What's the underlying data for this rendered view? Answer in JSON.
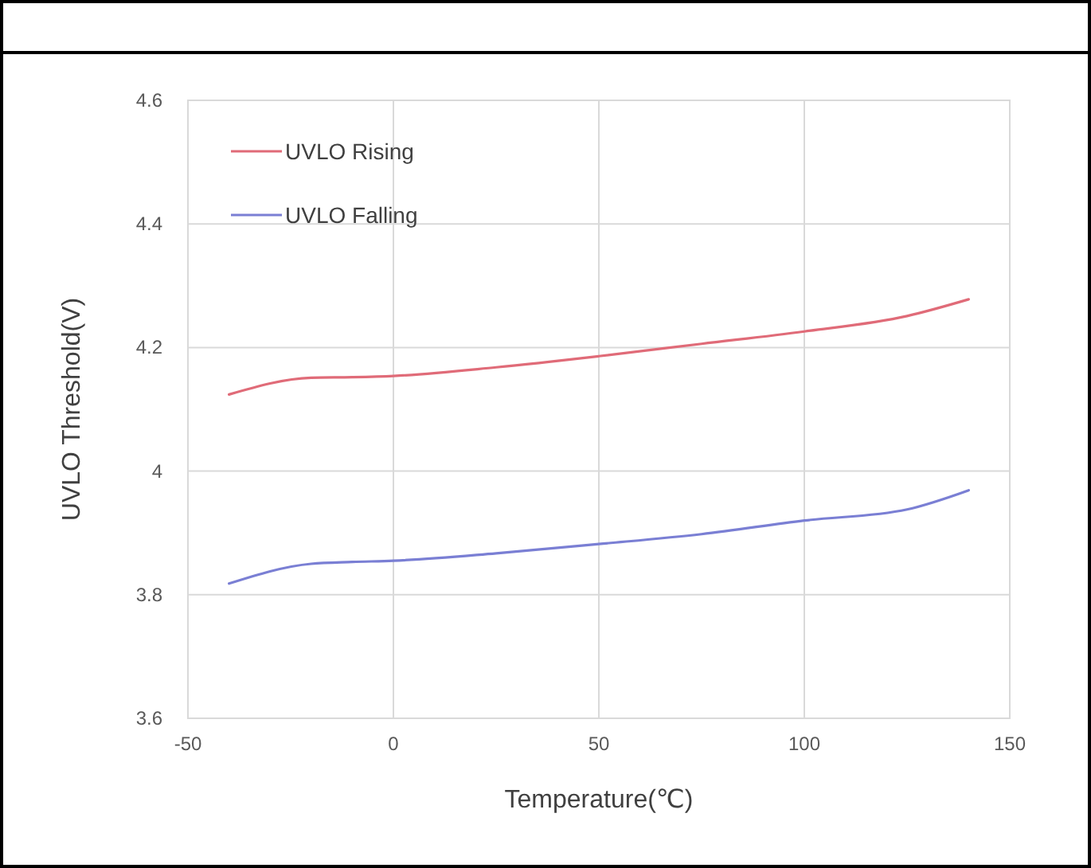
{
  "chart_data": {
    "type": "line",
    "xlabel": "Temperature(℃)",
    "ylabel": "UVLO Threshold(V)",
    "x": [
      -40,
      -20,
      -10,
      0,
      25,
      50,
      75,
      100,
      125,
      140
    ],
    "series": [
      {
        "name": "UVLO Rising",
        "color": "#e06b78",
        "values": [
          4.124,
          4.151,
          4.152,
          4.154,
          4.168,
          4.186,
          4.206,
          4.226,
          4.251,
          4.278
        ]
      },
      {
        "name": "UVLO Falling",
        "color": "#7a7fd4",
        "values": [
          3.818,
          3.85,
          3.853,
          3.855,
          3.867,
          3.882,
          3.898,
          3.92,
          3.938,
          3.969
        ]
      }
    ],
    "xlim": [
      -50,
      150
    ],
    "xticks": [
      -50,
      0,
      50,
      100,
      150
    ],
    "ylim": [
      3.6,
      4.6
    ],
    "yticks": [
      3.6,
      3.8,
      4,
      4.2,
      4.4,
      4.6
    ],
    "grid": true,
    "legend": "top left",
    "marker": "none",
    "line_style": "solid"
  }
}
